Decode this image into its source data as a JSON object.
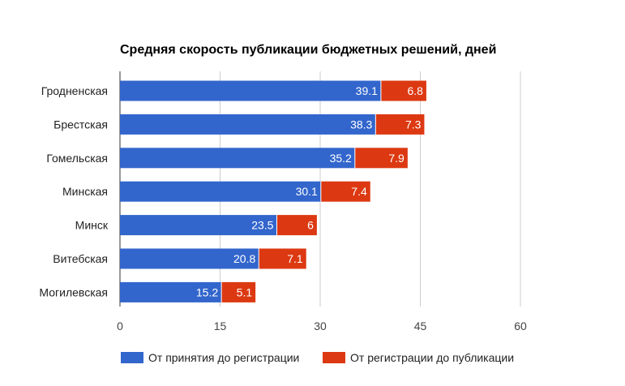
{
  "chart_data": {
    "type": "bar",
    "orientation": "horizontal",
    "stacked": true,
    "title": "Средняя скорость публикации бюджетных решений, дней",
    "categories": [
      "Гродненская",
      "Брестская",
      "Гомельская",
      "Минская",
      "Минск",
      "Витебская",
      "Могилевская"
    ],
    "series": [
      {
        "name": "От принятия до регистрации",
        "color": "#3366cc",
        "values": [
          39.1,
          38.3,
          35.2,
          30.1,
          23.5,
          20.8,
          15.2
        ]
      },
      {
        "name": "От регистрации до публикации",
        "color": "#dc3912",
        "values": [
          6.8,
          7.3,
          7.9,
          7.4,
          6,
          7.1,
          5.1
        ]
      }
    ],
    "xlim": [
      0,
      60
    ],
    "xticks": [
      0,
      15,
      30,
      45,
      60
    ],
    "grid": true,
    "data_labels": true,
    "legend_position": "bottom"
  }
}
